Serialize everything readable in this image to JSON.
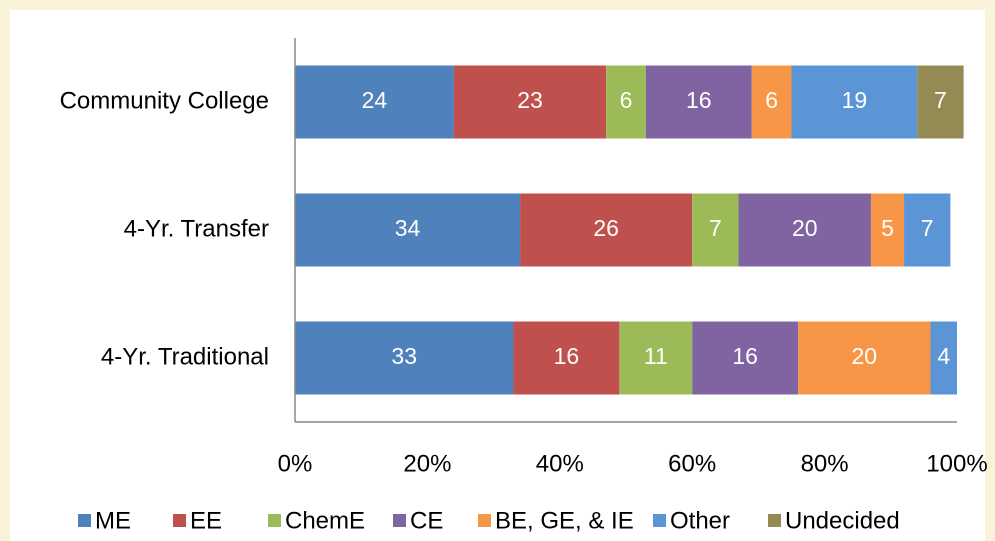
{
  "chart_data": {
    "type": "stacked_barh",
    "categories": [
      "Community College",
      "4-Yr. Transfer",
      "4-Yr. Traditional"
    ],
    "series": [
      {
        "name": "ME",
        "color": "#4f81bd",
        "values": [
          24,
          34,
          33
        ]
      },
      {
        "name": "EE",
        "color": "#c0504d",
        "values": [
          23,
          26,
          16
        ]
      },
      {
        "name": "ChemE",
        "color": "#9bbb59",
        "values": [
          6,
          7,
          11
        ]
      },
      {
        "name": "CE",
        "color": "#8064a2",
        "values": [
          16,
          20,
          16
        ]
      },
      {
        "name": "BE, GE, & IE",
        "color": "#f79646",
        "values": [
          6,
          5,
          20
        ]
      },
      {
        "name": "Other",
        "color": "#5b95d6",
        "values": [
          19,
          7,
          4
        ]
      },
      {
        "name": "Undecided",
        "color": "#948a54",
        "values": [
          7,
          null,
          null
        ]
      }
    ],
    "xlim": [
      0,
      100
    ],
    "xticks": [
      {
        "value": 0,
        "label": "0%"
      },
      {
        "value": 20,
        "label": "20%"
      },
      {
        "value": 40,
        "label": "40%"
      },
      {
        "value": 60,
        "label": "60%"
      },
      {
        "value": 80,
        "label": "80%"
      },
      {
        "value": 100,
        "label": "100%"
      }
    ],
    "legend": "bottom"
  }
}
